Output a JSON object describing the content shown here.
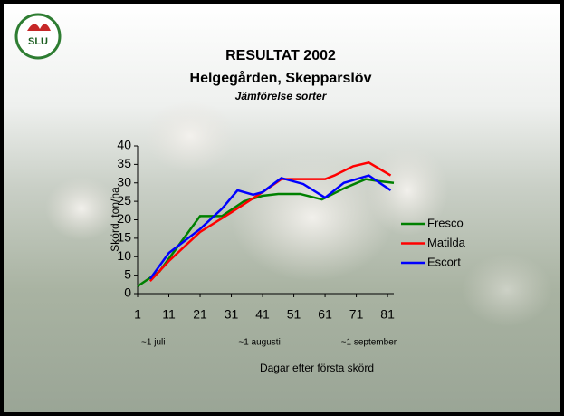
{
  "logo": "SLU",
  "chart_data": {
    "type": "line",
    "title": "RESULTAT 2002",
    "subtitle": "Helgegården, Skepparslöv",
    "subtitle2": "Jämförelse sorter",
    "x_label": "Dagar efter första skörd",
    "y_label": "Skörd, ton/ha",
    "annotations": [
      {
        "text": "~1 juli",
        "x": 6
      },
      {
        "text": "~1 augusti",
        "x": 40
      },
      {
        "text": "~1 september",
        "x": 75
      }
    ],
    "xlim": [
      1,
      83
    ],
    "xticks": [
      1,
      11,
      21,
      31,
      41,
      51,
      61,
      71,
      81
    ],
    "ylim": [
      0,
      40
    ],
    "yticks": [
      0,
      5,
      10,
      15,
      20,
      25,
      30,
      35,
      40
    ],
    "legend": "right",
    "series": [
      {
        "name": "Fresco",
        "color": "#008000",
        "x": [
          1,
          8,
          21,
          28,
          35,
          41,
          46,
          53,
          60,
          67,
          74,
          78,
          83
        ],
        "values": [
          2,
          6,
          21,
          21,
          25,
          26.5,
          27,
          27,
          25.5,
          28.5,
          31,
          30.5,
          30
        ]
      },
      {
        "name": "Matilda",
        "color": "#ff0000",
        "x": [
          5,
          11,
          21,
          31,
          41,
          47,
          55,
          61,
          64,
          70,
          75,
          79,
          82
        ],
        "values": [
          3.4,
          8.8,
          16.7,
          22,
          27.5,
          31,
          31,
          31,
          32,
          34.5,
          35.5,
          33.5,
          32
        ]
      },
      {
        "name": "Escort",
        "color": "#0000ff",
        "x": [
          5,
          11,
          21,
          28,
          33,
          38,
          41,
          47,
          54,
          61,
          67,
          75,
          79,
          82
        ],
        "values": [
          4,
          11,
          17.5,
          23,
          28,
          26.8,
          27.5,
          31.3,
          29.7,
          26,
          30,
          32,
          29.7,
          28
        ]
      }
    ]
  }
}
